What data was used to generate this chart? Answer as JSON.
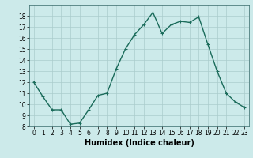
{
  "x": [
    0,
    1,
    2,
    3,
    4,
    5,
    6,
    7,
    8,
    9,
    10,
    11,
    12,
    13,
    14,
    15,
    16,
    17,
    18,
    19,
    20,
    21,
    22,
    23
  ],
  "y": [
    12,
    10.7,
    9.5,
    9.5,
    8.2,
    8.3,
    9.5,
    10.8,
    11.0,
    13.2,
    15.0,
    16.3,
    17.2,
    18.3,
    16.4,
    17.2,
    17.5,
    17.4,
    17.9,
    15.4,
    13.0,
    11.0,
    10.2,
    9.7
  ],
  "line_color": "#1a6b5a",
  "marker": "+",
  "marker_size": 3,
  "bg_color": "#cceaea",
  "grid_color": "#aacccc",
  "xlabel": "Humidex (Indice chaleur)",
  "ylim": [
    8,
    19
  ],
  "xlim": [
    -0.5,
    23.5
  ],
  "yticks": [
    8,
    9,
    10,
    11,
    12,
    13,
    14,
    15,
    16,
    17,
    18
  ],
  "xticks": [
    0,
    1,
    2,
    3,
    4,
    5,
    6,
    7,
    8,
    9,
    10,
    11,
    12,
    13,
    14,
    15,
    16,
    17,
    18,
    19,
    20,
    21,
    22,
    23
  ],
  "tick_fontsize": 5.5,
  "xlabel_fontsize": 7,
  "linewidth": 1.0
}
